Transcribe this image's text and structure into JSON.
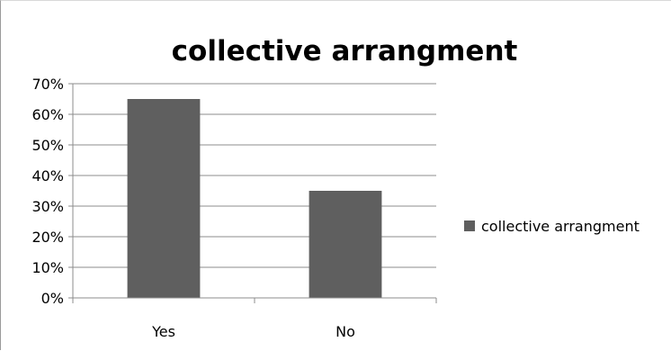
{
  "chart_data": {
    "type": "bar",
    "title": "collective arrangment",
    "categories": [
      "Yes",
      "No"
    ],
    "series": [
      {
        "name": "collective arrangment",
        "values": [
          65,
          35
        ],
        "color": "#5f5f5f"
      }
    ],
    "ylim": [
      0,
      70
    ],
    "yticks": [
      0,
      10,
      20,
      30,
      40,
      50,
      60,
      70
    ],
    "ytick_labels": [
      "0%",
      "10%",
      "20%",
      "30%",
      "40%",
      "50%",
      "60%",
      "70%"
    ],
    "grid": true,
    "legend_position": "right"
  }
}
